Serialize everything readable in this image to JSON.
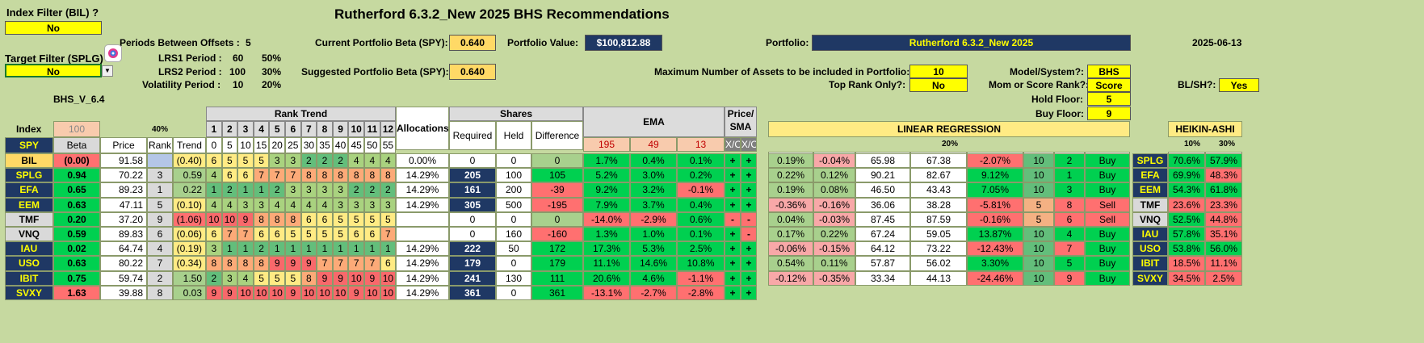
{
  "title": "Rutherford 6.3.2_New 2025 BHS Recommendations",
  "date": "2025-06-13",
  "index_filter": {
    "label": "Index Filter (BIL) ?",
    "value": "No"
  },
  "target_filter": {
    "label": "Target Filter (SPLG) ?",
    "value": "No"
  },
  "periods": {
    "label": "Periods Between Offsets :",
    "value": "5"
  },
  "lrs1": {
    "label": "LRS1 Period :",
    "value": "60",
    "pct": "50%"
  },
  "lrs2": {
    "label": "LRS2 Period :",
    "value": "100",
    "pct": "30%"
  },
  "vol": {
    "label": "Volatility Period :",
    "value": "10",
    "pct": "20%"
  },
  "version": "BHS_V_6.4",
  "current_beta": {
    "label": "Current Portfolio Beta (SPY):",
    "value": "0.640"
  },
  "suggested_beta": {
    "label": "Suggested Portfolio Beta (SPY):",
    "value": "0.640"
  },
  "portfolio_value": {
    "label": "Portfolio Value:",
    "value": "$100,812.88"
  },
  "portfolio": {
    "label": "Portfolio:",
    "value": "Rutherford 6.3.2_New 2025"
  },
  "max_assets": {
    "label": "Maximum Number of Assets to be included in Portfolio:",
    "value": "10"
  },
  "top_rank": {
    "label": "Top Rank Only?:",
    "value": "No"
  },
  "model": {
    "label": "Model/System?:",
    "value": "BHS"
  },
  "mom_score": {
    "label": "Mom or Score Rank?:",
    "value": "Score"
  },
  "hold_floor": {
    "label": "Hold Floor:",
    "value": "5"
  },
  "buy_floor": {
    "label": "Buy Floor:",
    "value": "9"
  },
  "blsh": {
    "label": "BL/SH?:",
    "value": "Yes"
  },
  "headers": {
    "index": "Index",
    "index_val": "100",
    "pct40": "40%",
    "rank_trend": "Rank Trend",
    "allocations": "Allocations",
    "shares": "Shares",
    "ema": "EMA",
    "price_sma": "Price/ SMA",
    "linreg": "LINEAR REGRESSION",
    "heikin": "HEIKIN-ASHI",
    "pct20": "20%",
    "pct10": "10%",
    "pct30": "30%",
    "spy": "SPY",
    "beta": "Beta",
    "price": "Price",
    "rank": "Rank",
    "trend": "Trend",
    "required": "Required",
    "held": "Held",
    "difference": "Difference",
    "ema195": "195",
    "ema49": "49",
    "ema13": "13",
    "xo1": "X/O",
    "xo2": "X/O",
    "lrs1": "LRS1",
    "lrs2": "LRS2",
    "projection": "Projection",
    "convolution": "Convolution",
    "projconv": "Proj - Conv",
    "score": "Score",
    "rank2": "Rank",
    "position": "Position",
    "ha8": "HA8",
    "ha5": "HA5"
  },
  "rt_top": [
    "1",
    "2",
    "3",
    "4",
    "5",
    "6",
    "7",
    "8",
    "9",
    "10",
    "11",
    "12"
  ],
  "rt_bot": [
    "0",
    "5",
    "10",
    "15",
    "20",
    "25",
    "30",
    "35",
    "40",
    "45",
    "50",
    "55"
  ],
  "rows": [
    {
      "sym": "BIL",
      "beta": "(0.00)",
      "price": "91.58",
      "rank": "",
      "trend": "(0.40)",
      "rt": [
        "6",
        "5",
        "5",
        "5",
        "3",
        "3",
        "2",
        "2",
        "2",
        "4",
        "4",
        "4"
      ],
      "alloc": "0.00%",
      "req": "0",
      "held": "0",
      "diff": "0",
      "e195": "1.7%",
      "e49": "0.4%",
      "e13": "0.1%",
      "x1": "+",
      "x2": "+",
      "l1": "0.19%",
      "l2": "-0.04%",
      "proj": "65.98",
      "conv": "67.38",
      "pc": "-2.07%",
      "score": "10",
      "rk": "2",
      "pos": "Buy",
      "sym2": "SPLG",
      "ha8": "70.6%",
      "ha5": "57.9%"
    },
    {
      "sym": "SPLG",
      "beta": "0.94",
      "price": "70.22",
      "rank": "3",
      "trend": "0.59",
      "rt": [
        "4",
        "6",
        "6",
        "7",
        "7",
        "7",
        "8",
        "8",
        "8",
        "8",
        "8",
        "8"
      ],
      "alloc": "14.29%",
      "req": "205",
      "held": "100",
      "diff": "105",
      "e195": "5.2%",
      "e49": "3.0%",
      "e13": "0.2%",
      "x1": "+",
      "x2": "+",
      "l1": "0.22%",
      "l2": "0.12%",
      "proj": "90.21",
      "conv": "82.67",
      "pc": "9.12%",
      "score": "10",
      "rk": "1",
      "pos": "Buy",
      "sym2": "EFA",
      "ha8": "69.9%",
      "ha5": "48.3%"
    },
    {
      "sym": "EFA",
      "beta": "0.65",
      "price": "89.23",
      "rank": "1",
      "trend": "0.22",
      "rt": [
        "1",
        "2",
        "1",
        "1",
        "2",
        "3",
        "3",
        "3",
        "3",
        "2",
        "2",
        "2"
      ],
      "alloc": "14.29%",
      "req": "161",
      "held": "200",
      "diff": "-39",
      "e195": "9.2%",
      "e49": "3.2%",
      "e13": "-0.1%",
      "x1": "+",
      "x2": "+",
      "l1": "0.19%",
      "l2": "0.08%",
      "proj": "46.50",
      "conv": "43.43",
      "pc": "7.05%",
      "score": "10",
      "rk": "3",
      "pos": "Buy",
      "sym2": "EEM",
      "ha8": "54.3%",
      "ha5": "61.8%"
    },
    {
      "sym": "EEM",
      "beta": "0.63",
      "price": "47.11",
      "rank": "5",
      "trend": "(0.10)",
      "rt": [
        "4",
        "4",
        "3",
        "3",
        "4",
        "4",
        "4",
        "4",
        "3",
        "3",
        "3",
        "3"
      ],
      "alloc": "14.29%",
      "req": "305",
      "held": "500",
      "diff": "-195",
      "e195": "7.9%",
      "e49": "3.7%",
      "e13": "0.4%",
      "x1": "+",
      "x2": "+",
      "l1": "-0.36%",
      "l2": "-0.16%",
      "proj": "36.06",
      "conv": "38.28",
      "pc": "-5.81%",
      "score": "5",
      "rk": "8",
      "pos": "Sell",
      "sym2": "TMF",
      "ha8": "23.6%",
      "ha5": "23.3%"
    },
    {
      "sym": "TMF",
      "beta": "0.20",
      "price": "37.20",
      "rank": "9",
      "trend": "(1.06)",
      "rt": [
        "10",
        "10",
        "9",
        "8",
        "8",
        "8",
        "6",
        "6",
        "5",
        "5",
        "5",
        "5"
      ],
      "alloc": "",
      "req": "0",
      "held": "0",
      "diff": "0",
      "e195": "-14.0%",
      "e49": "-2.9%",
      "e13": "0.6%",
      "x1": "-",
      "x2": "-",
      "l1": "0.04%",
      "l2": "-0.03%",
      "proj": "87.45",
      "conv": "87.59",
      "pc": "-0.16%",
      "score": "5",
      "rk": "6",
      "pos": "Sell",
      "sym2": "VNQ",
      "ha8": "52.5%",
      "ha5": "44.8%"
    },
    {
      "sym": "VNQ",
      "beta": "0.59",
      "price": "89.83",
      "rank": "6",
      "trend": "(0.06)",
      "rt": [
        "6",
        "7",
        "7",
        "6",
        "6",
        "5",
        "5",
        "5",
        "5",
        "6",
        "6",
        "7"
      ],
      "alloc": "",
      "req": "0",
      "held": "160",
      "diff": "-160",
      "e195": "1.3%",
      "e49": "1.0%",
      "e13": "0.1%",
      "x1": "+",
      "x2": "-",
      "l1": "0.17%",
      "l2": "0.22%",
      "proj": "67.24",
      "conv": "59.05",
      "pc": "13.87%",
      "score": "10",
      "rk": "4",
      "pos": "Buy",
      "sym2": "IAU",
      "ha8": "57.8%",
      "ha5": "35.1%"
    },
    {
      "sym": "IAU",
      "beta": "0.02",
      "price": "64.74",
      "rank": "4",
      "trend": "(0.19)",
      "rt": [
        "3",
        "1",
        "1",
        "2",
        "1",
        "1",
        "1",
        "1",
        "1",
        "1",
        "1",
        "1"
      ],
      "alloc": "14.29%",
      "req": "222",
      "held": "50",
      "diff": "172",
      "e195": "17.3%",
      "e49": "5.3%",
      "e13": "2.5%",
      "x1": "+",
      "x2": "+",
      "l1": "-0.06%",
      "l2": "-0.15%",
      "proj": "64.12",
      "conv": "73.22",
      "pc": "-12.43%",
      "score": "10",
      "rk": "7",
      "pos": "Buy",
      "sym2": "USO",
      "ha8": "53.8%",
      "ha5": "56.0%"
    },
    {
      "sym": "USO",
      "beta": "0.63",
      "price": "80.22",
      "rank": "7",
      "trend": "(0.34)",
      "rt": [
        "8",
        "8",
        "8",
        "8",
        "9",
        "9",
        "9",
        "7",
        "7",
        "7",
        "7",
        "6"
      ],
      "alloc": "14.29%",
      "req": "179",
      "held": "0",
      "diff": "179",
      "e195": "11.1%",
      "e49": "14.6%",
      "e13": "10.8%",
      "x1": "+",
      "x2": "+",
      "l1": "0.54%",
      "l2": "0.11%",
      "proj": "57.87",
      "conv": "56.02",
      "pc": "3.30%",
      "score": "10",
      "rk": "5",
      "pos": "Buy",
      "sym2": "IBIT",
      "ha8": "18.5%",
      "ha5": "11.1%"
    },
    {
      "sym": "IBIT",
      "beta": "0.75",
      "price": "59.74",
      "rank": "2",
      "trend": "1.50",
      "rt": [
        "2",
        "3",
        "4",
        "5",
        "5",
        "5",
        "8",
        "9",
        "9",
        "10",
        "9",
        "10"
      ],
      "alloc": "14.29%",
      "req": "241",
      "held": "130",
      "diff": "111",
      "e195": "20.6%",
      "e49": "4.6%",
      "e13": "-1.1%",
      "x1": "+",
      "x2": "+",
      "l1": "-0.12%",
      "l2": "-0.35%",
      "proj": "33.34",
      "conv": "44.13",
      "pc": "-24.46%",
      "score": "10",
      "rk": "9",
      "pos": "Buy",
      "sym2": "SVXY",
      "ha8": "34.5%",
      "ha5": "2.5%"
    },
    {
      "sym": "SVXY",
      "beta": "1.63",
      "price": "39.88",
      "rank": "8",
      "trend": "0.03",
      "rt": [
        "9",
        "9",
        "10",
        "10",
        "10",
        "9",
        "10",
        "10",
        "10",
        "9",
        "10",
        "10"
      ],
      "alloc": "14.29%",
      "req": "361",
      "held": "0",
      "diff": "361",
      "e195": "-13.1%",
      "e49": "-2.7%",
      "e13": "-2.8%",
      "x1": "+",
      "x2": "+",
      "l1": "",
      "l2": "",
      "proj": "",
      "conv": "",
      "pc": "",
      "score": "",
      "rk": "",
      "pos": "",
      "sym2": "",
      "ha8": "",
      "ha5": ""
    }
  ],
  "colors": {
    "background": "#c6d9a0",
    "green": "#00d050",
    "red": "#ff7070",
    "yellow": "#ffff00",
    "navy": "#1f3864"
  }
}
